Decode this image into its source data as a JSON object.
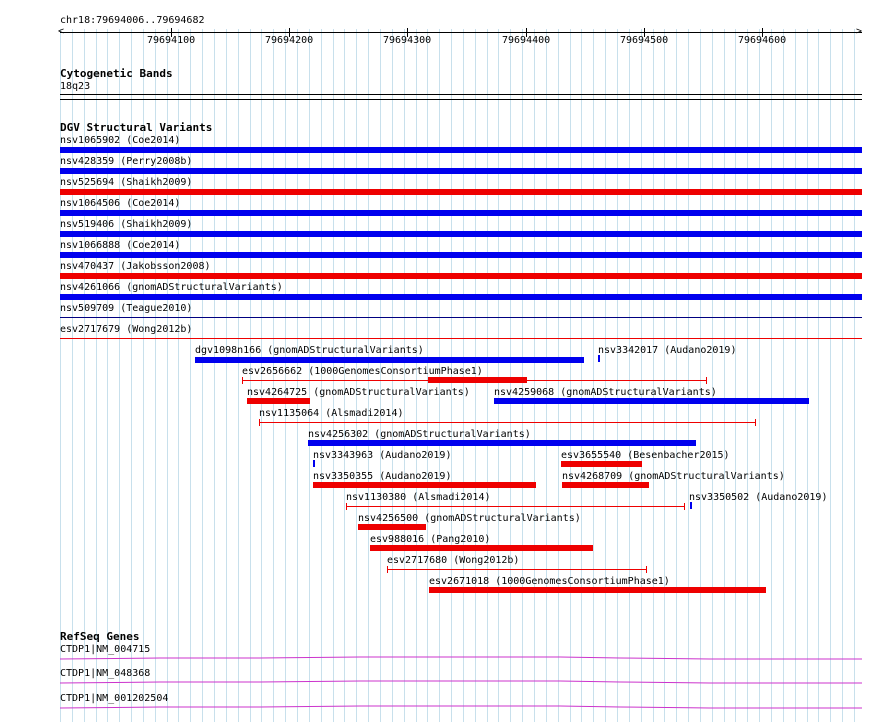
{
  "browser": {
    "location": "chr18:79694006..79694682",
    "ruler_ticks": [
      "79694100",
      "79694200",
      "79694300",
      "79694400",
      "79694500",
      "79694600"
    ],
    "colors": {
      "gain": "#0000ee",
      "loss": "#ee0000",
      "gene": "#cc33cc",
      "grid": "#c8e0ec"
    }
  },
  "tracks": {
    "cytoband": {
      "title": "Cytogenetic Bands",
      "band": "18q23"
    },
    "dgv": {
      "title": "DGV Structural Variants",
      "full_rows": [
        {
          "label": "nsv1065902 (Coe2014)",
          "color": "blue"
        },
        {
          "label": "nsv428359 (Perry2008b)",
          "color": "blue"
        },
        {
          "label": "nsv525694 (Shaikh2009)",
          "color": "red"
        },
        {
          "label": "nsv1064506 (Coe2014)",
          "color": "blue"
        },
        {
          "label": "nsv519406 (Shaikh2009)",
          "color": "blue"
        },
        {
          "label": "nsv1066888 (Coe2014)",
          "color": "blue"
        },
        {
          "label": "nsv470437 (Jakobsson2008)",
          "color": "red"
        },
        {
          "label": "nsv4261066 (gnomADStructuralVariants)",
          "color": "blue"
        },
        {
          "label": "nsv509709 (Teague2010)",
          "color": "blue-line"
        },
        {
          "label": "esv2717679 (Wong2012b)",
          "color": "red-line"
        }
      ],
      "features": [
        {
          "label": "dgv1098n166 (gnomADStructuralVariants)",
          "color": "blue"
        },
        {
          "label": "nsv3342017 (Audano2019)",
          "color": "blue"
        },
        {
          "label": "esv2656662 (1000GenomesConsortiumPhase1)",
          "color": "red"
        },
        {
          "label": "nsv4264725 (gnomADStructuralVariants)",
          "color": "red"
        },
        {
          "label": "nsv4259068 (gnomADStructuralVariants)",
          "color": "blue"
        },
        {
          "label": "nsv1135064 (Alsmadi2014)",
          "color": "red"
        },
        {
          "label": "nsv4256302 (gnomADStructuralVariants)",
          "color": "blue"
        },
        {
          "label": "nsv3343963 (Audano2019)",
          "color": "blue"
        },
        {
          "label": "esv3655540 (Besenbacher2015)",
          "color": "red"
        },
        {
          "label": "nsv3350355 (Audano2019)",
          "color": "red"
        },
        {
          "label": "nsv4268709 (gnomADStructuralVariants)",
          "color": "red"
        },
        {
          "label": "nsv1130380 (Alsmadi2014)",
          "color": "red"
        },
        {
          "label": "nsv3350502 (Audano2019)",
          "color": "blue"
        },
        {
          "label": "nsv4256500 (gnomADStructuralVariants)",
          "color": "red"
        },
        {
          "label": "esv988016 (Pang2010)",
          "color": "red"
        },
        {
          "label": "esv2717680 (Wong2012b)",
          "color": "red"
        },
        {
          "label": "esv2671018 (1000GenomesConsortiumPhase1)",
          "color": "red"
        }
      ]
    },
    "refseq": {
      "title": "RefSeq Genes",
      "genes": [
        "CTDP1|NM_004715",
        "CTDP1|NM_048368",
        "CTDP1|NM_001202504"
      ]
    }
  }
}
